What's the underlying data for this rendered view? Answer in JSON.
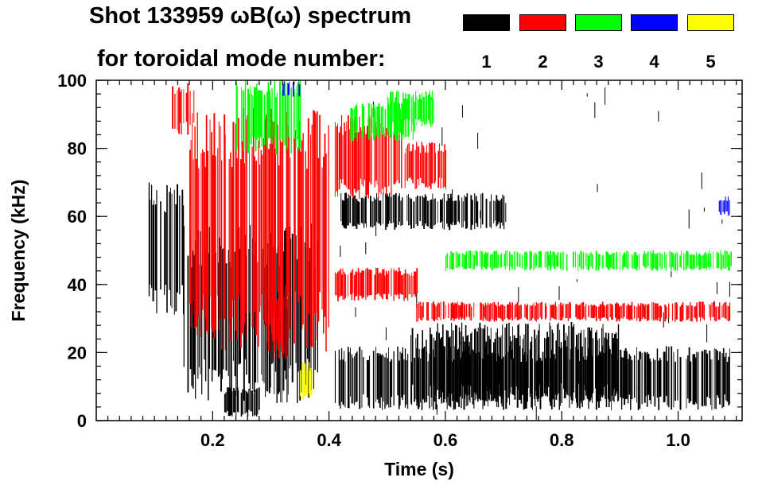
{
  "header": {
    "title": "Shot 133959 ωB(ω) spectrum",
    "subtitle": "for toroidal mode number:"
  },
  "legend": [
    {
      "label": "1",
      "color": "#000000"
    },
    {
      "label": "2",
      "color": "#ff0000"
    },
    {
      "label": "3",
      "color": "#00ff00"
    },
    {
      "label": "4",
      "color": "#0000ff"
    },
    {
      "label": "5",
      "color": "#ffff00"
    }
  ],
  "chart_data": {
    "type": "heatmap",
    "title": "Shot 133959 ωB(ω) spectrum",
    "xlabel": "Time (s)",
    "ylabel": "Frequency (kHz)",
    "xlim": [
      0.0,
      1.11
    ],
    "ylim": [
      0,
      100
    ],
    "x_ticks": [
      {
        "value": 0.2,
        "label": "0.2"
      },
      {
        "value": 0.4,
        "label": "0.4"
      },
      {
        "value": 0.6,
        "label": "0.6"
      },
      {
        "value": 0.8,
        "label": "0.8"
      },
      {
        "value": 1.0,
        "label": "1.0"
      }
    ],
    "y_ticks": [
      {
        "value": 0,
        "label": "0"
      },
      {
        "value": 20,
        "label": "20"
      },
      {
        "value": 40,
        "label": "40"
      },
      {
        "value": 60,
        "label": "60"
      },
      {
        "value": 80,
        "label": "80"
      },
      {
        "value": 100,
        "label": "100"
      }
    ],
    "grid": false,
    "mode_colors": {
      "1": "#000000",
      "2": "#ff0000",
      "3": "#00ff00",
      "4": "#0000ff",
      "5": "#ffff00"
    },
    "regions": [
      {
        "mode": "1",
        "t": [
          0.09,
          0.15
        ],
        "f": [
          30,
          70
        ]
      },
      {
        "mode": "1",
        "t": [
          0.15,
          0.38
        ],
        "f": [
          5,
          58
        ]
      },
      {
        "mode": "1",
        "t": [
          0.22,
          0.28
        ],
        "f": [
          1,
          10
        ]
      },
      {
        "mode": "1",
        "t": [
          0.41,
          1.09
        ],
        "f": [
          3,
          22
        ]
      },
      {
        "mode": "1",
        "t": [
          0.54,
          0.9
        ],
        "f": [
          5,
          29
        ]
      },
      {
        "mode": "1",
        "t": [
          0.42,
          0.7
        ],
        "f": [
          56,
          67
        ]
      },
      {
        "mode": "1",
        "t": [
          0.41,
          1.09
        ],
        "f": [
          0,
          100
        ],
        "sparse": true
      },
      {
        "mode": "2",
        "t": [
          0.13,
          0.17
        ],
        "f": [
          84,
          100
        ]
      },
      {
        "mode": "2",
        "t": [
          0.16,
          0.4
        ],
        "f": [
          20,
          92
        ]
      },
      {
        "mode": "2",
        "t": [
          0.3,
          0.33
        ],
        "f": [
          18,
          40
        ]
      },
      {
        "mode": "2",
        "t": [
          0.41,
          0.53
        ],
        "f": [
          65,
          90
        ]
      },
      {
        "mode": "2",
        "t": [
          0.53,
          0.6
        ],
        "f": [
          68,
          82
        ]
      },
      {
        "mode": "2",
        "t": [
          0.41,
          0.55
        ],
        "f": [
          35,
          45
        ]
      },
      {
        "mode": "2",
        "t": [
          0.55,
          1.09
        ],
        "f": [
          29,
          35
        ]
      },
      {
        "mode": "3",
        "t": [
          0.5,
          0.58
        ],
        "f": [
          86,
          97
        ]
      },
      {
        "mode": "3",
        "t": [
          0.43,
          0.55
        ],
        "f": [
          82,
          94
        ]
      },
      {
        "mode": "3",
        "t": [
          0.24,
          0.35
        ],
        "f": [
          78,
          100
        ]
      },
      {
        "mode": "3",
        "t": [
          0.6,
          1.09
        ],
        "f": [
          44,
          50
        ]
      },
      {
        "mode": "4",
        "t": [
          0.32,
          0.35
        ],
        "f": [
          95,
          100
        ]
      },
      {
        "mode": "4",
        "t": [
          1.07,
          1.09
        ],
        "f": [
          60,
          66
        ]
      },
      {
        "mode": "5",
        "t": [
          0.35,
          0.37
        ],
        "f": [
          5,
          18
        ]
      }
    ]
  }
}
